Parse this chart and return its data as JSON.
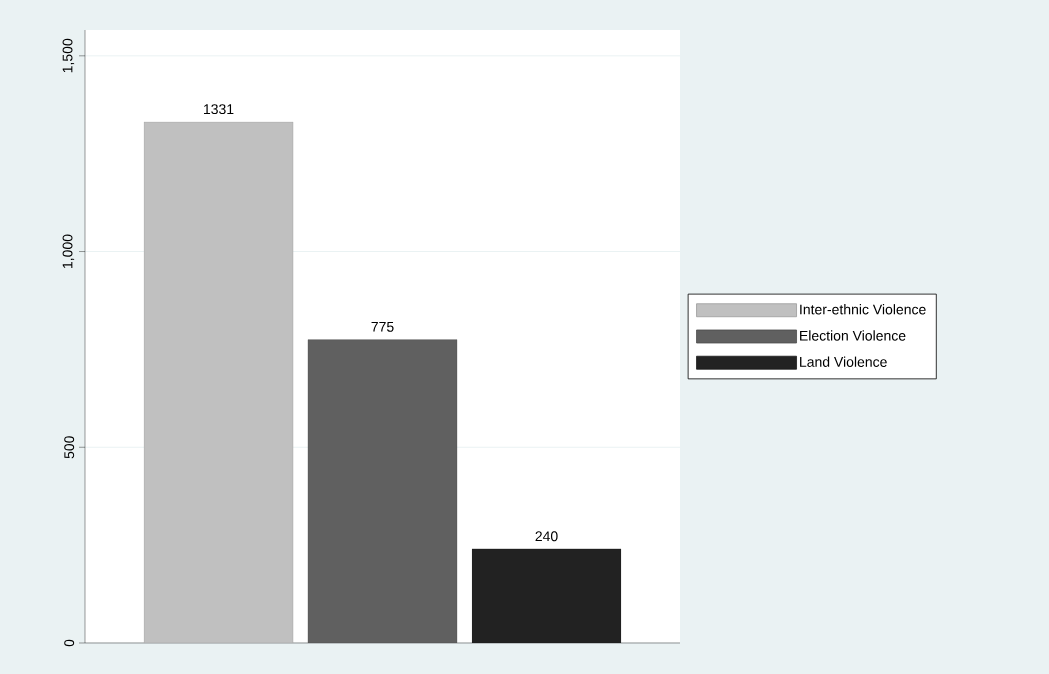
{
  "chart_data": {
    "type": "bar",
    "categories": [
      null
    ],
    "series": [
      {
        "name": "Inter-ethnic Violence",
        "color": "#c0c0c0",
        "values": [
          1331
        ]
      },
      {
        "name": "Election Violence",
        "color": "#606060",
        "values": [
          775
        ]
      },
      {
        "name": "Land Violence",
        "color": "#222222",
        "values": [
          240
        ]
      }
    ],
    "ylim": [
      0,
      1566
    ],
    "yticks": [
      0,
      500,
      {
        "value": 1000,
        "label": "1,000"
      },
      {
        "value": 1500,
        "label": "1,500"
      }
    ],
    "grid": "y",
    "legend": "right",
    "data_labels": true
  }
}
